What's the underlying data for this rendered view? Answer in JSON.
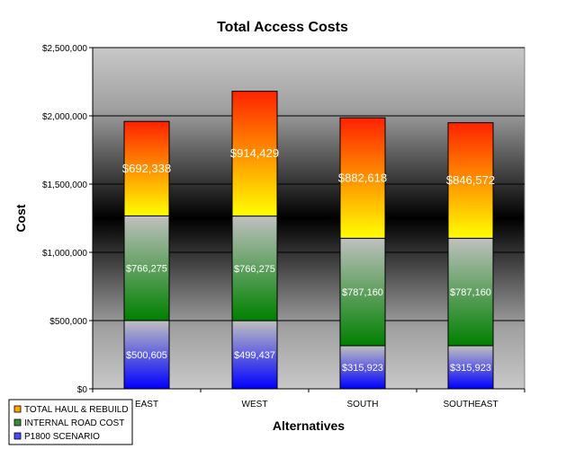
{
  "chart_data": {
    "type": "bar",
    "stacked": true,
    "title": "Total Access Costs",
    "xlabel": "Alternatives",
    "ylabel": "Cost",
    "categories": [
      "EAST",
      "WEST",
      "SOUTH",
      "SOUTHEAST"
    ],
    "ylim": [
      0,
      2500000
    ],
    "yticks": [
      0,
      500000,
      1000000,
      1500000,
      2000000,
      2500000
    ],
    "ytick_labels": [
      "$0",
      "$500,000",
      "$1,000,000",
      "$1,500,000",
      "$2,000,000",
      "$2,500,000"
    ],
    "grid": true,
    "legend_position": "bottom-left",
    "series": [
      {
        "name": "P1800 SCENARIO",
        "values": [
          500605,
          499437,
          315923,
          315923
        ],
        "labels": [
          "$500,605",
          "$499,437",
          "$315,923",
          "$315,923"
        ],
        "color_top": "#c0c0c0",
        "color_bottom": "#0000ff"
      },
      {
        "name": "INTERNAL ROAD COST",
        "values": [
          766275,
          766275,
          787160,
          787160
        ],
        "labels": [
          "$766,275",
          "$766,275",
          "$787,160",
          "$787,160"
        ],
        "color_top": "#c0c0c0",
        "color_bottom": "#008000"
      },
      {
        "name": "TOTAL HAUL & REBUILD",
        "values": [
          692338,
          914429,
          882618,
          846572
        ],
        "labels": [
          "$692,338",
          "$914,429",
          "$882,618",
          "$846,572"
        ],
        "color_top": "#ff2200",
        "color_bottom": "#ffff00"
      }
    ],
    "legend": [
      {
        "name": "TOTAL HAUL & REBUILD",
        "color": "#ffa500"
      },
      {
        "name": "INTERNAL ROAD COST",
        "color": "#3c8a3c"
      },
      {
        "name": "P1800 SCENARIO",
        "color": "#4a4aff"
      }
    ]
  }
}
